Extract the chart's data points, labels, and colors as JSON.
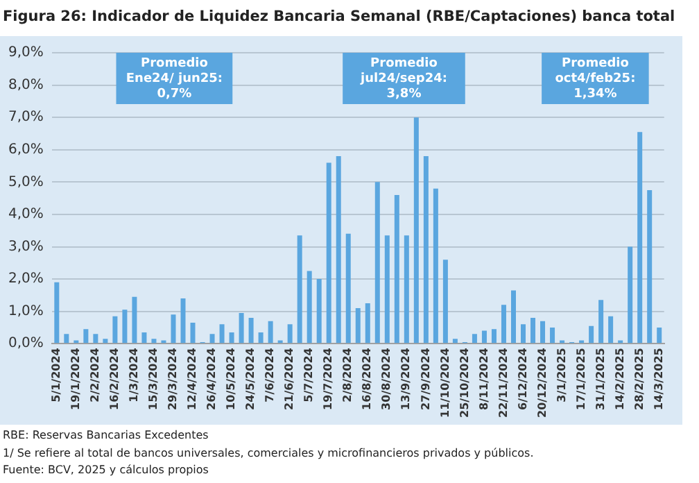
{
  "chart_data": {
    "type": "bar",
    "title": "Figura 26: Indicador de Liquidez Bancaria Semanal (RBE/Captaciones) banca total",
    "categories": [
      "5/1/2024",
      null,
      "19/1/2024",
      null,
      "2/2/2024",
      null,
      "16/2/2024",
      null,
      "1/3/2024",
      null,
      "15/3/2024",
      null,
      "29/3/2024",
      null,
      "12/4/2024",
      null,
      "26/4/2024",
      null,
      "10/5/2024",
      null,
      "24/5/2024",
      null,
      "7/6/2024",
      null,
      "21/6/2024",
      null,
      "5/7/2024",
      null,
      "19/7/2024",
      null,
      "2/8/2024",
      null,
      "16/8/2024",
      null,
      "30/8/2024",
      null,
      "13/9/2024",
      null,
      "27/9/2024",
      null,
      "11/10/2024",
      null,
      "25/10/2024",
      null,
      "8/11/2024",
      null,
      "22/11/2024",
      null,
      "6/12/2024",
      null,
      "20/12/2024",
      null,
      "3/1/2025",
      null,
      "17/1/2025",
      null,
      "31/1/2025",
      null,
      "14/2/2025",
      null,
      "28/2/2025",
      null,
      "14/3/2025"
    ],
    "values": [
      1.9,
      0.3,
      0.1,
      0.45,
      0.3,
      0.15,
      0.85,
      1.05,
      1.45,
      0.35,
      0.15,
      0.1,
      0.9,
      1.4,
      0.65,
      0.05,
      0.3,
      0.6,
      0.35,
      0.95,
      0.8,
      0.35,
      0.7,
      0.1,
      0.6,
      3.35,
      2.25,
      2.0,
      5.6,
      5.8,
      3.4,
      1.1,
      1.25,
      5.0,
      3.35,
      4.6,
      3.35,
      7.0,
      5.8,
      4.8,
      2.6,
      0.15,
      0.05,
      0.3,
      0.4,
      0.45,
      1.2,
      1.65,
      0.6,
      0.8,
      0.7,
      0.5,
      0.1,
      0.05,
      0.1,
      0.55,
      1.35,
      0.85,
      0.1,
      3.0,
      6.55,
      4.75,
      0.5
    ],
    "color": "#5aa6df",
    "ylim": [
      0,
      9
    ],
    "yticks": [
      {
        "value": 0,
        "label": "0,0%"
      },
      {
        "value": 1,
        "label": "1,0%"
      },
      {
        "value": 2,
        "label": "2,0%"
      },
      {
        "value": 3,
        "label": "3,0%"
      },
      {
        "value": 4,
        "label": "4,0%"
      },
      {
        "value": 5,
        "label": "5,0%"
      },
      {
        "value": 6,
        "label": "6,0%"
      },
      {
        "value": 7,
        "label": "7,0%"
      },
      {
        "value": 8,
        "label": "8,0%"
      },
      {
        "value": 9,
        "label": "9,0%"
      }
    ],
    "grid": "y",
    "annotations": [
      "Promedio\nEne24/ jun25:\n0,7%",
      "Promedio\njul24/sep24:\n3,8%",
      "Promedio\noct4/feb25:\n1,34%",
      "RBE: Reservas Bancarias Excedentes",
      "1/ Se refiere al total de bancos universales, comerciales y microfinancieros privados y públicos.",
      "Fuente: BCV, 2025 y cálculos propios"
    ]
  }
}
